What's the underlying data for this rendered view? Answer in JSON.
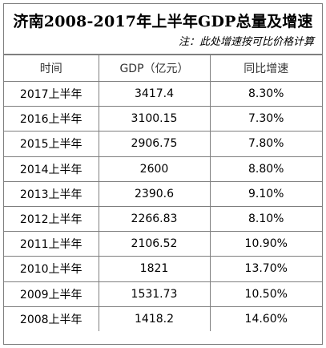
{
  "title": "济南2008-2017年上半年GDP总量及增速",
  "note": "注：此处增速按可比价格计算",
  "table": {
    "headers": [
      "时间",
      "GDP（亿元）",
      "同比增速"
    ],
    "rows": [
      [
        "2017上半年",
        "3417.4",
        "8.30%"
      ],
      [
        "2016上半年",
        "3100.15",
        "7.30%"
      ],
      [
        "2015上半年",
        "2906.75",
        "7.80%"
      ],
      [
        "2014上半年",
        "2600",
        "8.80%"
      ],
      [
        "2013上半年",
        "2390.6",
        "9.10%"
      ],
      [
        "2012上半年",
        "2266.83",
        "8.10%"
      ],
      [
        "2011上半年",
        "2106.52",
        "10.90%"
      ],
      [
        "2010上半年",
        "1821",
        "13.70%"
      ],
      [
        "2009上半年",
        "1531.73",
        "10.50%"
      ],
      [
        "2008上半年",
        "1418.2",
        "14.60%"
      ]
    ]
  }
}
